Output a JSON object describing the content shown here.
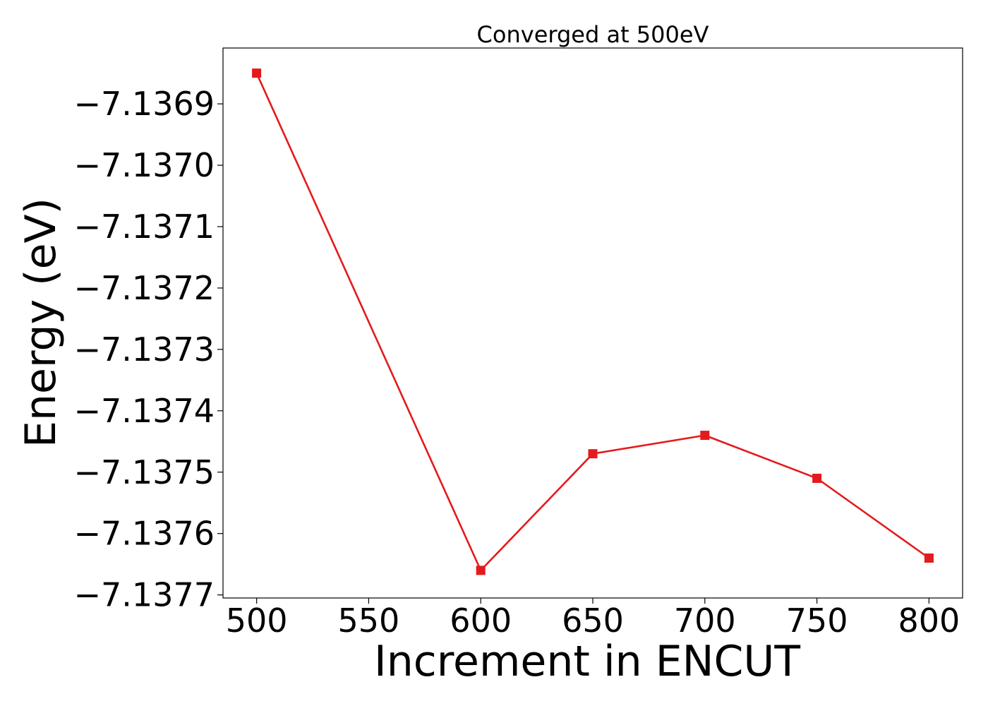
{
  "chart_data": {
    "type": "line",
    "title": "Converged at 500eV",
    "xlabel": "Increment in ENCUT",
    "ylabel": "Energy (eV)",
    "x": [
      500,
      600,
      650,
      700,
      750,
      800
    ],
    "series": [
      {
        "values": [
          -7.13685,
          -7.13766,
          -7.13747,
          -7.13744,
          -7.13751,
          -7.13764
        ],
        "color": "#e41a1c",
        "marker": "square"
      }
    ],
    "xticks": [
      500,
      550,
      600,
      650,
      700,
      750,
      800
    ],
    "xtick_labels": [
      "500",
      "550",
      "600",
      "650",
      "700",
      "750",
      "800"
    ],
    "yticks": [
      -7.1369,
      -7.137,
      -7.1371,
      -7.1372,
      -7.1373,
      -7.1374,
      -7.1375,
      -7.1376,
      -7.1377
    ],
    "ytick_labels": [
      "−7.1369",
      "−7.1370",
      "−7.1371",
      "−7.1372",
      "−7.1373",
      "−7.1374",
      "−7.1375",
      "−7.1376",
      "−7.1377"
    ],
    "xlim": [
      485,
      815
    ],
    "ylim": [
      -7.137705,
      -7.136809
    ],
    "grid": false,
    "legend": "none"
  }
}
